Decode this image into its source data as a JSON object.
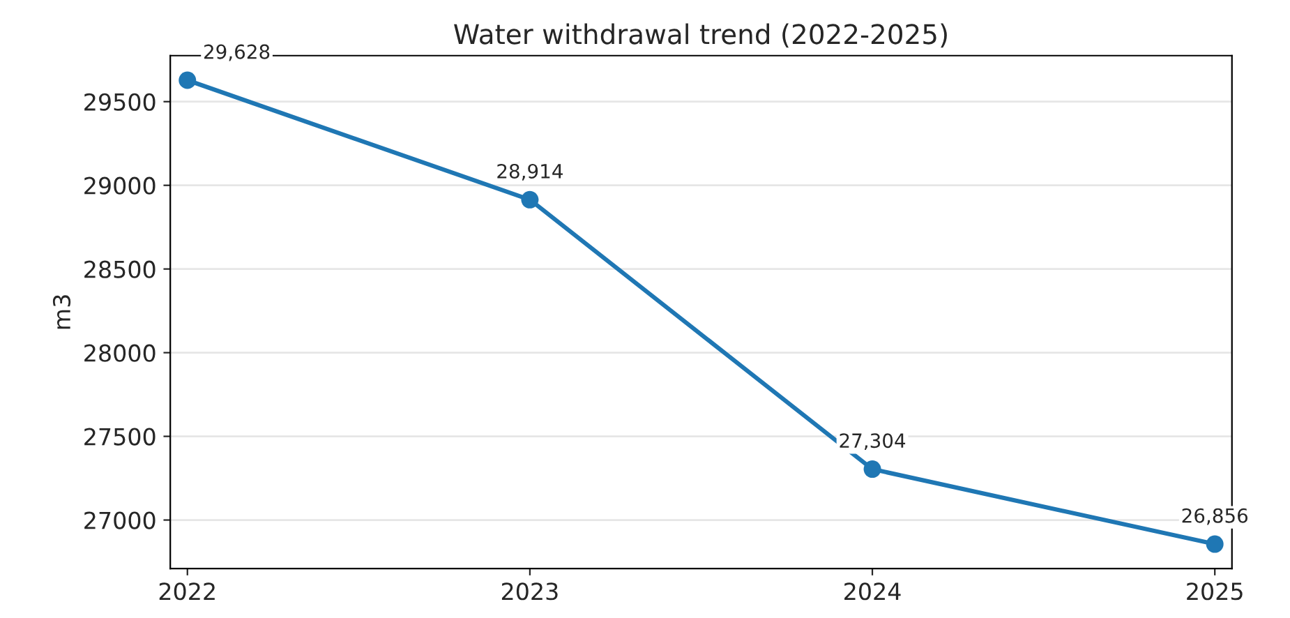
{
  "chart_data": {
    "type": "line",
    "title": "Water withdrawal trend (2022-2025)",
    "ylabel": "m3",
    "categories": [
      "2022",
      "2023",
      "2024",
      "2025"
    ],
    "series": [
      {
        "color": "#1f77b4",
        "values": [
          29628,
          28914,
          27304,
          26856
        ],
        "value_labels": [
          "29,628",
          "28,914",
          "27,304",
          "26,856"
        ]
      }
    ],
    "ylim": [
      26710,
      29775
    ],
    "yticks": [
      27000,
      27500,
      28000,
      28500,
      29000,
      29500
    ],
    "grid": "y",
    "marker": "circle",
    "line_style": "solid"
  }
}
